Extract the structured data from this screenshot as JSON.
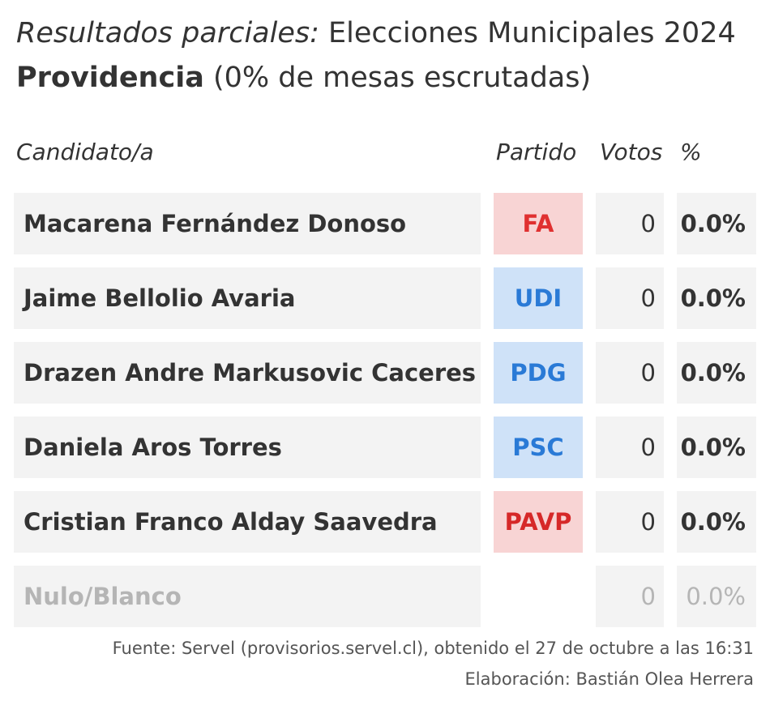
{
  "title": {
    "italic_part": "Resultados parciales:",
    "rest": " Elecciones Municipales 2024",
    "comuna": "Providencia",
    "progress": " (0% de mesas escrutadas)"
  },
  "headers": {
    "candidate": "Candidato/a",
    "party": "Partido",
    "votes": "Votos",
    "pct": "%"
  },
  "chart_data": {
    "type": "table",
    "columns": [
      "Candidato/a",
      "Partido",
      "Votos",
      "%"
    ],
    "rows": [
      {
        "name": "Macarena Fernández Donoso",
        "party": "FA",
        "votes": "0",
        "pct": "0.0%",
        "party_bg": "#f8d4d4",
        "party_color": "#e03030"
      },
      {
        "name": "Jaime Bellolio Avaria",
        "party": "UDI",
        "votes": "0",
        "pct": "0.0%",
        "party_bg": "#cfe2f8",
        "party_color": "#2a7ad6"
      },
      {
        "name": "Drazen Andre Markusovic Caceres",
        "party": "PDG",
        "votes": "0",
        "pct": "0.0%",
        "party_bg": "#cfe2f8",
        "party_color": "#2a7ad6"
      },
      {
        "name": "Daniela Aros Torres",
        "party": "PSC",
        "votes": "0",
        "pct": "0.0%",
        "party_bg": "#cfe2f8",
        "party_color": "#2a7ad6"
      },
      {
        "name": "Cristian Franco Alday Saavedra",
        "party": "PAVP",
        "votes": "0",
        "pct": "0.0%",
        "party_bg": "#f8d4d4",
        "party_color": "#d62828"
      },
      {
        "name": "Nulo/Blanco",
        "party": "",
        "votes": "0",
        "pct": "0.0%",
        "muted": true
      }
    ]
  },
  "footer": {
    "source": "Fuente: Servel (provisorios.servel.cl), obtenido el 27 de octubre a las 16:31",
    "credit": "Elaboración: Bastián Olea Herrera"
  }
}
